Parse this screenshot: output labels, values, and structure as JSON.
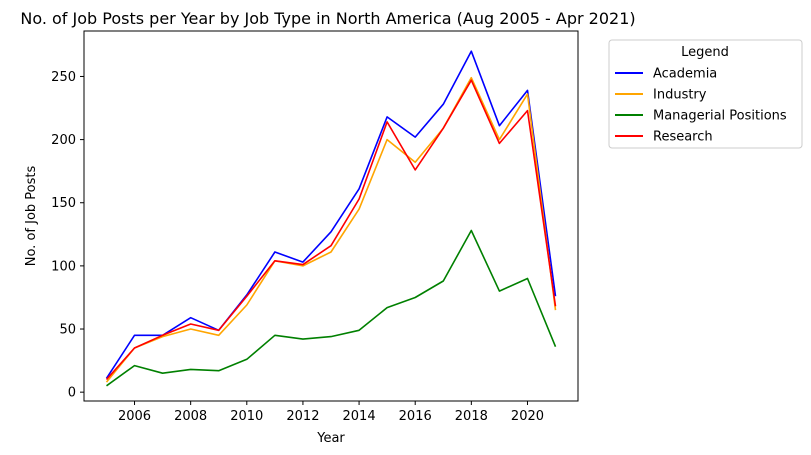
{
  "chart_data": {
    "type": "line",
    "title": "No. of Job Posts per Year by Job Type in North America (Aug 2005 - Apr 2021)",
    "xlabel": "Year",
    "ylabel": "No. of Job Posts",
    "xlim": [
      2004.2,
      2021.8
    ],
    "ylim": [
      -7,
      286
    ],
    "xticks": [
      2006,
      2008,
      2010,
      2012,
      2014,
      2016,
      2018,
      2020
    ],
    "yticks": [
      0,
      50,
      100,
      150,
      200,
      250
    ],
    "x": [
      2005,
      2006,
      2007,
      2008,
      2009,
      2010,
      2011,
      2012,
      2013,
      2014,
      2015,
      2016,
      2017,
      2018,
      2019,
      2020,
      2021
    ],
    "grid": false,
    "legend": {
      "title": "Legend",
      "placement": "outside-top-right"
    },
    "series": [
      {
        "name": "Academia",
        "color": "#0000ff",
        "values": [
          11,
          45,
          45,
          59,
          49,
          77,
          111,
          103,
          127,
          161,
          218,
          202,
          228,
          270,
          211,
          239,
          76
        ]
      },
      {
        "name": "Industry",
        "color": "#ffa500",
        "values": [
          8,
          35,
          44,
          50,
          45,
          69,
          104,
          100,
          111,
          145,
          200,
          182,
          209,
          249,
          200,
          236,
          65
        ]
      },
      {
        "name": "Managerial Positions",
        "color": "#008000",
        "values": [
          5,
          21,
          15,
          18,
          17,
          26,
          45,
          42,
          44,
          49,
          67,
          75,
          88,
          128,
          80,
          90,
          36
        ]
      },
      {
        "name": "Research",
        "color": "#ff0000",
        "values": [
          10,
          35,
          45,
          54,
          49,
          76,
          104,
          101,
          116,
          153,
          214,
          176,
          209,
          247,
          197,
          223,
          68
        ]
      }
    ]
  }
}
